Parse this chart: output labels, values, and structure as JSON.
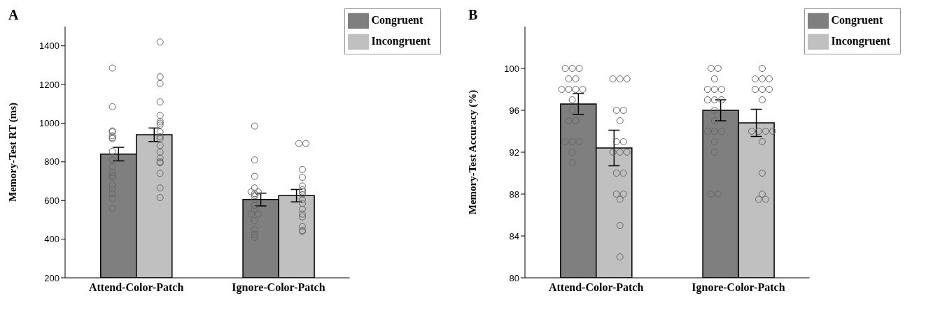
{
  "chart_data": [
    {
      "type": "bar",
      "title": "A",
      "ylabel": "Memory-Test RT (ms)",
      "categories": [
        "Attend-Color-Patch",
        "Ignore-Color-Patch"
      ],
      "ylim": [
        200,
        1500
      ],
      "yticks": [
        200,
        400,
        600,
        800,
        1000,
        1200,
        1400
      ],
      "legend": "top right",
      "grid": false,
      "marker": "circle",
      "series": [
        {
          "name": "Congruent",
          "type": "bar",
          "color": "#7f7f7f",
          "values": [
            840,
            605
          ],
          "errors": [
            35,
            33
          ]
        },
        {
          "name": "Incongruent",
          "type": "bar",
          "color": "#c0c0c0",
          "values": [
            940,
            625
          ],
          "errors": [
            35,
            32
          ]
        },
        {
          "type": "scatter",
          "color": "#666666",
          "x": [
            "Attend-Color-Patch",
            "Attend-Color-Patch",
            "Attend-Color-Patch",
            "Attend-Color-Patch",
            "Attend-Color-Patch",
            "Attend-Color-Patch",
            "Attend-Color-Patch",
            "Attend-Color-Patch",
            "Attend-Color-Patch",
            "Attend-Color-Patch",
            "Attend-Color-Patch",
            "Attend-Color-Patch",
            "Attend-Color-Patch",
            "Attend-Color-Patch",
            "Attend-Color-Patch",
            "Attend-Color-Patch",
            "Attend-Color-Patch",
            "Attend-Color-Patch",
            "Ignore-Color-Patch",
            "Ignore-Color-Patch",
            "Ignore-Color-Patch",
            "Ignore-Color-Patch",
            "Ignore-Color-Patch",
            "Ignore-Color-Patch",
            "Ignore-Color-Patch",
            "Ignore-Color-Patch",
            "Ignore-Color-Patch",
            "Ignore-Color-Patch",
            "Ignore-Color-Patch",
            "Ignore-Color-Patch",
            "Ignore-Color-Patch",
            "Ignore-Color-Patch",
            "Ignore-Color-Patch",
            "Ignore-Color-Patch",
            "Ignore-Color-Patch"
          ],
          "values": [
            1285,
            1085,
            960,
            955,
            935,
            925,
            920,
            855,
            810,
            775,
            745,
            730,
            720,
            680,
            660,
            635,
            610,
            560,
            985,
            810,
            725,
            665,
            645,
            645,
            635,
            625,
            605,
            575,
            555,
            530,
            530,
            495,
            450,
            425,
            410
          ]
        },
        {
          "type": "scatter",
          "color": "#666666",
          "x": [
            "Attend-Color-Patch",
            "Attend-Color-Patch",
            "Attend-Color-Patch",
            "Attend-Color-Patch",
            "Attend-Color-Patch",
            "Attend-Color-Patch",
            "Attend-Color-Patch",
            "Attend-Color-Patch",
            "Attend-Color-Patch",
            "Attend-Color-Patch",
            "Attend-Color-Patch",
            "Attend-Color-Patch",
            "Attend-Color-Patch",
            "Attend-Color-Patch",
            "Attend-Color-Patch",
            "Attend-Color-Patch",
            "Attend-Color-Patch",
            "Attend-Color-Patch",
            "Attend-Color-Patch",
            "Ignore-Color-Patch",
            "Ignore-Color-Patch",
            "Ignore-Color-Patch",
            "Ignore-Color-Patch",
            "Ignore-Color-Patch",
            "Ignore-Color-Patch",
            "Ignore-Color-Patch",
            "Ignore-Color-Patch",
            "Ignore-Color-Patch",
            "Ignore-Color-Patch",
            "Ignore-Color-Patch",
            "Ignore-Color-Patch",
            "Ignore-Color-Patch",
            "Ignore-Color-Patch",
            "Ignore-Color-Patch",
            "Ignore-Color-Patch"
          ],
          "values": [
            1420,
            1240,
            1205,
            1110,
            1040,
            1010,
            1000,
            990,
            955,
            930,
            920,
            885,
            850,
            820,
            800,
            795,
            740,
            665,
            615,
            895,
            895,
            760,
            720,
            675,
            655,
            645,
            630,
            605,
            585,
            555,
            530,
            515,
            465,
            445,
            440
          ]
        }
      ]
    },
    {
      "type": "bar",
      "title": "B",
      "ylabel": "Memory-Test Accuracy (%)",
      "categories": [
        "Attend-Color-Patch",
        "Ignore-Color-Patch"
      ],
      "ylim": [
        80,
        104
      ],
      "yticks": [
        80,
        84,
        88,
        92,
        96,
        100
      ],
      "legend": "top right",
      "grid": false,
      "marker": "circle",
      "series": [
        {
          "name": "Congruent",
          "type": "bar",
          "color": "#7f7f7f",
          "values": [
            96.6,
            96.0
          ],
          "errors": [
            1.0,
            1.0
          ]
        },
        {
          "name": "Incongruent",
          "type": "bar",
          "color": "#c0c0c0",
          "values": [
            92.4,
            94.8
          ],
          "errors": [
            1.7,
            1.3
          ]
        },
        {
          "type": "scatter",
          "color": "#666666",
          "x": [
            "Attend-Color-Patch",
            "Attend-Color-Patch",
            "Attend-Color-Patch",
            "Attend-Color-Patch",
            "Attend-Color-Patch",
            "Attend-Color-Patch",
            "Attend-Color-Patch",
            "Attend-Color-Patch",
            "Attend-Color-Patch",
            "Attend-Color-Patch",
            "Attend-Color-Patch",
            "Attend-Color-Patch",
            "Attend-Color-Patch",
            "Attend-Color-Patch",
            "Attend-Color-Patch",
            "Attend-Color-Patch",
            "Attend-Color-Patch",
            "Attend-Color-Patch",
            "Ignore-Color-Patch",
            "Ignore-Color-Patch",
            "Ignore-Color-Patch",
            "Ignore-Color-Patch",
            "Ignore-Color-Patch",
            "Ignore-Color-Patch",
            "Ignore-Color-Patch",
            "Ignore-Color-Patch",
            "Ignore-Color-Patch",
            "Ignore-Color-Patch",
            "Ignore-Color-Patch",
            "Ignore-Color-Patch",
            "Ignore-Color-Patch",
            "Ignore-Color-Patch",
            "Ignore-Color-Patch",
            "Ignore-Color-Patch",
            "Ignore-Color-Patch",
            "Ignore-Color-Patch"
          ],
          "values": [
            100,
            100,
            100,
            99,
            99,
            98,
            98,
            98,
            98,
            97,
            96,
            95,
            95,
            93,
            93,
            93,
            92,
            91,
            100,
            100,
            99,
            98,
            98,
            98,
            97,
            97,
            97,
            96,
            95,
            94,
            94,
            94,
            93,
            92,
            88,
            88
          ]
        },
        {
          "type": "scatter",
          "color": "#666666",
          "x": [
            "Attend-Color-Patch",
            "Attend-Color-Patch",
            "Attend-Color-Patch",
            "Attend-Color-Patch",
            "Attend-Color-Patch",
            "Attend-Color-Patch",
            "Attend-Color-Patch",
            "Attend-Color-Patch",
            "Attend-Color-Patch",
            "Attend-Color-Patch",
            "Attend-Color-Patch",
            "Attend-Color-Patch",
            "Attend-Color-Patch",
            "Attend-Color-Patch",
            "Attend-Color-Patch",
            "Attend-Color-Patch",
            "Attend-Color-Patch",
            "Attend-Color-Patch",
            "Ignore-Color-Patch",
            "Ignore-Color-Patch",
            "Ignore-Color-Patch",
            "Ignore-Color-Patch",
            "Ignore-Color-Patch",
            "Ignore-Color-Patch",
            "Ignore-Color-Patch",
            "Ignore-Color-Patch",
            "Ignore-Color-Patch",
            "Ignore-Color-Patch",
            "Ignore-Color-Patch",
            "Ignore-Color-Patch",
            "Ignore-Color-Patch",
            "Ignore-Color-Patch",
            "Ignore-Color-Patch",
            "Ignore-Color-Patch",
            "Ignore-Color-Patch"
          ],
          "values": [
            99,
            99,
            99,
            96,
            96,
            95,
            93,
            93,
            92,
            92,
            92,
            90,
            90,
            88,
            88,
            87.5,
            85,
            82,
            100,
            99,
            99,
            99,
            98,
            98,
            98,
            97,
            94,
            94,
            94,
            94,
            93,
            90,
            88,
            87.5,
            87.5
          ]
        }
      ]
    }
  ]
}
